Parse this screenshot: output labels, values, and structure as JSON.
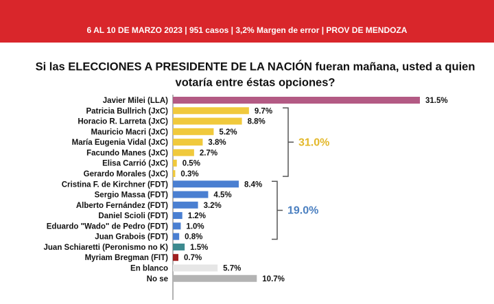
{
  "chart_data": {
    "type": "bar",
    "orientation": "horizontal",
    "subtitle": "6 AL 10 DE MARZO 2023 | 951 casos  |  3,2% Margen de error  | PROV DE MENDOZA",
    "title": [
      "Si las ELECCIONES A PRESIDENTE DE LA NACIÓN fueran mañana, usted a quien",
      "votaría entre éstas opciones?"
    ],
    "categories": [
      "Javier Milei (LLA)",
      "Patricia Bullrich (JxC)",
      "Horacio R. Larreta (JxC)",
      "Mauricio Macri (JxC)",
      "María Eugenia Vidal (JxC)",
      "Facundo Manes (JxC)",
      "Elisa Carrió (JxC)",
      "Gerardo Morales (JxC)",
      "Cristina F. de Kirchner (FDT)",
      "Sergio Massa (FDT)",
      "Alberto Fernández (FDT)",
      "Daniel Scioli (FDT)",
      "Eduardo \"Wado\" de Pedro (FDT)",
      "Juan Grabois (FDT)",
      "Juan Schiaretti (Peronismo no K)",
      "Myriam Bregman (FIT)",
      "En blanco",
      "No se"
    ],
    "values": [
      31.5,
      9.7,
      8.8,
      5.2,
      3.8,
      2.7,
      0.5,
      0.3,
      8.4,
      4.5,
      3.2,
      1.2,
      1.0,
      0.8,
      1.5,
      0.7,
      5.7,
      10.7
    ],
    "value_labels": [
      "31.5%",
      "9.7%",
      "8.8%",
      "5.2%",
      "3.8%",
      "2.7%",
      "0.5%",
      "0.3%",
      "8.4%",
      "4.5%",
      "3.2%",
      "1.2%",
      "1.0%",
      "0.8%",
      "1.5%",
      "0.7%",
      "5.7%",
      "10.7%"
    ],
    "colors": [
      "#b35a84",
      "#f0c93c",
      "#f0c93c",
      "#f0c93c",
      "#f0c93c",
      "#f0c93c",
      "#f0c93c",
      "#f0c93c",
      "#4a7fd1",
      "#4a7fd1",
      "#4a7fd1",
      "#4a7fd1",
      "#4a7fd1",
      "#4a7fd1",
      "#3d8a8f",
      "#a01f1f",
      "#e6e6e6",
      "#b3b3b3"
    ],
    "xlim": [
      0,
      35
    ],
    "groups": [
      {
        "value": 31.0,
        "value_label": "31.0%",
        "color": "#e3b82a"
      },
      {
        "value": 19.0,
        "value_label": "19.0%",
        "color": "#4a7fc0"
      }
    ]
  }
}
